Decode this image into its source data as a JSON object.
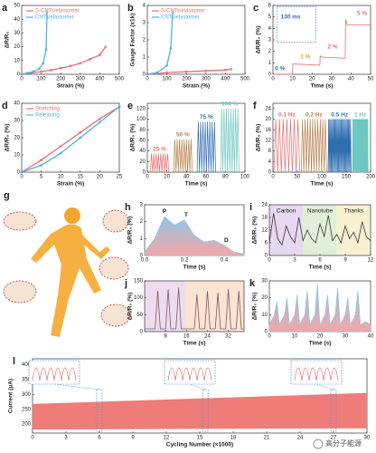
{
  "chart_data": [
    {
      "label": "a",
      "type": "line",
      "xlabel": "Strain (%)",
      "ylabel": "ΔR/R₀",
      "xlim": [
        0,
        500
      ],
      "xticks": [
        0,
        100,
        200,
        300,
        400,
        500
      ],
      "ylim": [
        0,
        50
      ],
      "yticks": [
        0,
        10,
        20,
        30,
        40,
        50
      ],
      "legend": "upper left",
      "series": [
        {
          "name": "S-CNTs/elastomer",
          "color": "#e8706f",
          "x": [
            0,
            50,
            100,
            150,
            200,
            250,
            300,
            350,
            400,
            430
          ],
          "values": [
            0,
            1,
            2,
            3,
            4.5,
            6,
            8,
            11,
            14,
            20
          ]
        },
        {
          "name": "CNTs/elastomer",
          "color": "#4fb3dc",
          "x": [
            0,
            30,
            60,
            90,
            110,
            125,
            130
          ],
          "values": [
            0,
            1,
            2,
            4,
            8,
            18,
            45
          ]
        }
      ]
    },
    {
      "label": "b",
      "type": "line",
      "xlabel": "Strain (%)",
      "ylabel": "Gauge Factor (x1k)",
      "xlim": [
        0,
        500
      ],
      "xticks": [
        0,
        100,
        200,
        300,
        400,
        500
      ],
      "ylim": [
        0,
        4
      ],
      "yticks": [
        0,
        1,
        2,
        3,
        4
      ],
      "legend": "upper left",
      "series": [
        {
          "name": "S-CNTs/elastomer",
          "color": "#e8706f",
          "x": [
            0,
            100,
            200,
            300,
            400,
            430
          ],
          "values": [
            0,
            0.1,
            0.15,
            0.2,
            0.25,
            0.3
          ]
        },
        {
          "name": "CNTs/elastomer",
          "color": "#4fb3dc",
          "x": [
            0,
            50,
            100,
            120,
            130
          ],
          "values": [
            0,
            0.1,
            0.5,
            1.5,
            3.6
          ]
        }
      ]
    },
    {
      "label": "c",
      "type": "line",
      "xlabel": "Time (s)",
      "ylabel": "ΔR/R₀ (%)",
      "xlim": [
        0,
        50
      ],
      "xticks": [
        0,
        10,
        20,
        30,
        40,
        50
      ],
      "ylim": [
        0,
        6
      ],
      "yticks": [
        0,
        1,
        2,
        3,
        4,
        5,
        6
      ],
      "series": [
        {
          "color": "#e8706f",
          "x": [
            0,
            10,
            10.2,
            24,
            24.2,
            25,
            37,
            37.2,
            38,
            50
          ],
          "values": [
            0,
            0,
            0.9,
            0.8,
            1.6,
            1.5,
            1.4,
            4.8,
            4.3,
            4.3
          ]
        }
      ],
      "annotations": [
        {
          "text": "0 %",
          "color": "#2f6fb0"
        },
        {
          "text": "1 %",
          "color": "#e8a030"
        },
        {
          "text": "2 %",
          "color": "#e8706f"
        },
        {
          "text": "5 %",
          "color": "#e8706f"
        },
        {
          "text": "130 ms",
          "color": "#2f6fb0"
        }
      ]
    },
    {
      "label": "d",
      "type": "line",
      "xlabel": "Strain (%)",
      "ylabel": "ΔR/R₀ (%)",
      "xlim": [
        0,
        25
      ],
      "xticks": [
        0,
        5,
        10,
        15,
        20,
        25
      ],
      "ylim": [
        0,
        40
      ],
      "yticks": [
        0,
        10,
        20,
        30,
        40
      ],
      "legend": "upper left",
      "series": [
        {
          "name": "Stretching",
          "color": "#e8706f",
          "x": [
            0,
            5,
            10,
            15,
            20,
            25
          ],
          "values": [
            0,
            7,
            15,
            23,
            31,
            38
          ]
        },
        {
          "name": "Releasing",
          "color": "#4fb3dc",
          "x": [
            0,
            5,
            10,
            15,
            20,
            25
          ],
          "values": [
            0,
            4,
            11,
            20,
            29,
            38
          ]
        }
      ]
    },
    {
      "label": "e",
      "type": "oscillation",
      "xlabel": "Time (s)",
      "ylabel": "ΔR/R₀ (%)",
      "xlim": [
        0,
        100
      ],
      "xticks": [
        0,
        20,
        40,
        60,
        80,
        100
      ],
      "ylim": [
        0,
        130
      ],
      "yticks": [
        0,
        20,
        40,
        60,
        80,
        100,
        120
      ],
      "segments": [
        {
          "name": "25 %",
          "color": "#e8706f",
          "from": 3,
          "to": 22,
          "peak": 35,
          "cycles": 8
        },
        {
          "name": "50 %",
          "color": "#b5804a",
          "from": 27,
          "to": 46,
          "peak": 62,
          "cycles": 8
        },
        {
          "name": "75 %",
          "color": "#2f6fb0",
          "from": 51,
          "to": 70,
          "peak": 95,
          "cycles": 8
        },
        {
          "name": "100 %",
          "color": "#6cc8c0",
          "from": 75,
          "to": 94,
          "peak": 120,
          "cycles": 8
        }
      ]
    },
    {
      "label": "f",
      "type": "oscillation",
      "xlabel": "Time (s)",
      "ylabel": "ΔR/R₀ (%)",
      "xlim": [
        0,
        200
      ],
      "xticks": [
        0,
        50,
        100,
        150,
        200
      ],
      "ylim": [
        0,
        26
      ],
      "yticks": [
        0,
        4,
        8,
        12,
        16,
        20,
        24
      ],
      "segments": [
        {
          "name": "0.1 Hz",
          "color": "#e8706f",
          "from": 2,
          "to": 55,
          "peak": 20,
          "cycles": 7
        },
        {
          "name": "0.2 Hz",
          "color": "#b5804a",
          "from": 58,
          "to": 110,
          "peak": 20,
          "cycles": 10
        },
        {
          "name": "0.5 Hz",
          "color": "#2f6fb0",
          "from": 113,
          "to": 160,
          "peak": 20,
          "cycles": 22
        },
        {
          "name": "1 Hz",
          "color": "#6cc8c0",
          "from": 163,
          "to": 195,
          "peak": 20,
          "cycles": 30
        }
      ]
    },
    {
      "label": "h",
      "type": "area",
      "xlabel": "Time (s)",
      "ylabel": "ΔR/R₀ (%)",
      "xlim": [
        0,
        0.5
      ],
      "xticks": [
        {
          "value": 0,
          "label": "0.0"
        },
        {
          "value": 0.2,
          "label": "0.2"
        },
        {
          "value": 0.4,
          "label": "0.4"
        }
      ],
      "ylim": [
        0,
        3
      ],
      "yticks": [
        0,
        1,
        2,
        3
      ],
      "series": [
        {
          "color": "#8fc6e6",
          "x": [
            0,
            0.05,
            0.1,
            0.15,
            0.2,
            0.25,
            0.3,
            0.35,
            0.4,
            0.45,
            0.5
          ],
          "values": [
            0.2,
            1,
            2.3,
            1.8,
            2.1,
            1.2,
            0.8,
            0.9,
            0.6,
            0.2,
            0.1
          ]
        }
      ],
      "annotations": [
        {
          "text": "P",
          "color": "#222222"
        },
        {
          "text": "T",
          "color": "#222222"
        },
        {
          "text": "D",
          "color": "#222222"
        }
      ]
    },
    {
      "label": "i",
      "type": "line",
      "xlabel": "Time (s)",
      "ylabel": "ΔR/R₀ (%)",
      "xlim": [
        0,
        12
      ],
      "xticks": [
        0,
        3,
        6,
        9,
        12
      ],
      "ylim": [
        0,
        24
      ],
      "yticks": [
        0,
        6,
        12,
        18,
        24
      ],
      "regions": [
        {
          "label": "Carbon",
          "color": "#e6d8f0",
          "from": 0,
          "to": 4
        },
        {
          "label": "Nanotube",
          "color": "#e0f0d8",
          "from": 4,
          "to": 8
        },
        {
          "label": "Thanks",
          "color": "#f8f0d0",
          "from": 8,
          "to": 12
        }
      ],
      "series": [
        {
          "color": "#333333",
          "x": [
            0,
            0.5,
            1,
            1.5,
            2,
            2.5,
            3,
            3.5,
            4,
            4.5,
            5,
            5.5,
            6,
            6.5,
            7,
            7.5,
            8,
            8.5,
            9,
            9.5,
            10,
            10.5,
            11,
            11.5,
            12
          ],
          "values": [
            6,
            20,
            8,
            5,
            14,
            9,
            6,
            18,
            7,
            12,
            8,
            6,
            15,
            9,
            19,
            7,
            10,
            6,
            14,
            8,
            11,
            6,
            16,
            9,
            7
          ]
        }
      ]
    },
    {
      "label": "j",
      "type": "line",
      "xlabel": "Time (s)",
      "ylabel": "ΔR/R₀ (%)",
      "xlim": [
        0,
        38
      ],
      "xticks": [
        8,
        16,
        24,
        32
      ],
      "ylim": [
        0,
        150
      ],
      "yticks": [
        0,
        50,
        100,
        150
      ],
      "regions": [
        {
          "color": "#ecdcee",
          "from": 0,
          "to": 16
        },
        {
          "color": "#fbe4d2",
          "from": 16,
          "to": 38
        }
      ],
      "series": [
        {
          "color": "#7a5a6a",
          "x": [
            0,
            1,
            2,
            3,
            4,
            5,
            6,
            7,
            8,
            9,
            10,
            11,
            12,
            13,
            14,
            15,
            16,
            17,
            18,
            19,
            20,
            21,
            22,
            23,
            24,
            25,
            26,
            27,
            28,
            29,
            30,
            31,
            32,
            33,
            34,
            35,
            36,
            37,
            38
          ],
          "values": [
            8,
            8,
            8,
            8,
            8,
            120,
            8,
            8,
            8,
            125,
            8,
            8,
            8,
            130,
            8,
            8,
            8,
            8,
            8,
            8,
            110,
            8,
            8,
            8,
            120,
            8,
            8,
            8,
            115,
            8,
            8,
            8,
            125,
            8,
            8,
            8,
            120,
            8,
            8
          ]
        }
      ]
    },
    {
      "label": "k",
      "type": "area",
      "xlabel": "Time (s)",
      "ylabel": "ΔR/R₀ (%)",
      "xlim": [
        0,
        40
      ],
      "xticks": [
        0,
        10,
        20,
        30,
        40
      ],
      "ylim": [
        0,
        30
      ],
      "yticks": [
        0,
        10,
        20,
        30
      ],
      "series": [
        {
          "color": "#8fc6e6",
          "x": [
            0,
            2,
            3,
            4,
            6,
            7,
            8,
            10,
            11,
            12,
            14,
            15,
            16,
            18,
            19,
            20,
            22,
            23,
            24,
            26,
            27,
            28,
            30,
            31,
            32,
            34,
            35,
            36,
            38,
            40
          ],
          "values": [
            4,
            10,
            18,
            4,
            10,
            20,
            4,
            10,
            22,
            4,
            10,
            24,
            4,
            10,
            28,
            4,
            10,
            22,
            4,
            10,
            26,
            4,
            10,
            20,
            4,
            10,
            24,
            4,
            6,
            4
          ]
        }
      ]
    },
    {
      "label": "l",
      "type": "band",
      "xlabel": "Cycling Number (×1000)",
      "ylabel": "Current (μA)",
      "xlim": [
        0,
        30
      ],
      "xticks": [
        0,
        3,
        6,
        9,
        12,
        15,
        18,
        21,
        24,
        27,
        30
      ],
      "ylim": [
        170,
        420
      ],
      "yticks": [
        200,
        250,
        300,
        350,
        400
      ],
      "band": {
        "color": "#ee7c78",
        "x": [
          0,
          30
        ],
        "low": [
          182,
          186
        ],
        "high": [
          268,
          305
        ]
      }
    }
  ],
  "illustration": {
    "label": "g"
  },
  "watermark": "高分子能源"
}
